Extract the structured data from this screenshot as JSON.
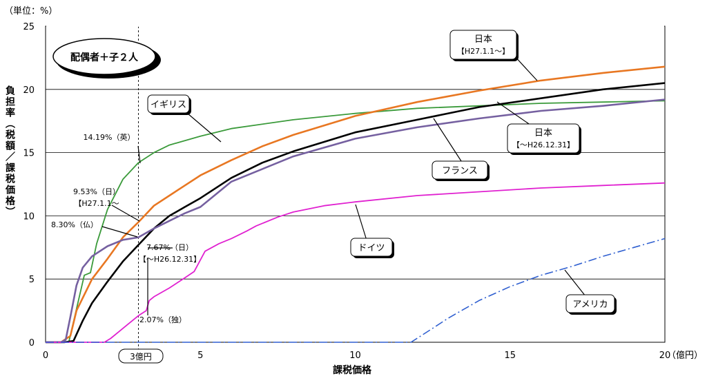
{
  "chart_data": {
    "type": "line",
    "unit_label": "（単位：%）",
    "ylabel": "負担率（税額／課税価格）",
    "xlabel": "課税価格",
    "x_unit": "（億円）",
    "xlim": [
      0,
      20
    ],
    "ylim": [
      0,
      25
    ],
    "x_ticks": [
      "0",
      "5",
      "10",
      "15",
      "20"
    ],
    "y_ticks": [
      "0",
      "5",
      "10",
      "15",
      "20",
      "25"
    ],
    "marker": {
      "x": 3,
      "label": "3億円"
    },
    "case_label": "配偶者＋子２人",
    "series": [
      {
        "name": "イギリス",
        "color": "#3a9a3a",
        "style": "solid",
        "x": [
          0,
          0.5,
          0.75,
          1.25,
          1.45,
          1.65,
          2,
          2.5,
          3,
          3.5,
          4,
          5,
          6,
          8,
          10,
          12,
          14,
          16,
          18,
          20
        ],
        "y": [
          0,
          0,
          0,
          5.3,
          5.5,
          7.8,
          10.5,
          12.9,
          14.2,
          15,
          15.6,
          16.3,
          16.9,
          17.6,
          18.1,
          18.5,
          18.7,
          18.9,
          19,
          19.1
        ]
      },
      {
        "name": "日本 H27.1.1〜",
        "color": "#e87722",
        "style": "solid",
        "x": [
          0,
          0.5,
          0.8,
          1,
          1.5,
          2,
          2.5,
          3,
          3.5,
          4,
          4.5,
          5,
          6,
          7,
          8,
          10,
          12,
          14,
          16,
          18,
          20
        ],
        "y": [
          0,
          0,
          0.5,
          2.5,
          5,
          6.6,
          8.3,
          9.5,
          10.8,
          11.6,
          12.4,
          13.2,
          14.4,
          15.5,
          16.4,
          17.9,
          19,
          19.9,
          20.7,
          21.3,
          21.8
        ]
      },
      {
        "name": "日本 〜H26.12.31",
        "color": "#000000",
        "style": "solid",
        "x": [
          0,
          0.6,
          0.9,
          1.2,
          1.5,
          2,
          2.5,
          3,
          3.5,
          4,
          4.5,
          5,
          6,
          7,
          8,
          10,
          12,
          14,
          16,
          18,
          20
        ],
        "y": [
          0,
          0,
          0.1,
          1.7,
          3.1,
          4.8,
          6.4,
          7.7,
          9,
          10,
          10.7,
          11.4,
          13,
          14.2,
          15.1,
          16.6,
          17.6,
          18.6,
          19.3,
          20,
          20.5
        ]
      },
      {
        "name": "フランス",
        "color": "#7560a0",
        "style": "solid",
        "x": [
          0,
          0.5,
          0.65,
          0.8,
          1,
          1.2,
          1.5,
          2,
          2.5,
          3,
          3.5,
          4,
          4.5,
          5,
          6,
          8,
          10,
          12,
          14,
          16,
          18,
          20
        ],
        "y": [
          0,
          0,
          0.2,
          2,
          4.5,
          5.9,
          6.8,
          7.6,
          8.1,
          8.3,
          9,
          9.6,
          10.2,
          10.7,
          12.7,
          14.7,
          16.1,
          17,
          17.7,
          18.3,
          18.7,
          19.2
        ]
      },
      {
        "name": "ドイツ",
        "color": "#e020d0",
        "style": "solid",
        "x": [
          0,
          1.9,
          2.1,
          2.35,
          2.6,
          3,
          3.25,
          3.35,
          3.5,
          4,
          4.5,
          4.8,
          5.15,
          5.6,
          6,
          6.5,
          6.8,
          7.5,
          8,
          9,
          10,
          12,
          14,
          16,
          18,
          20
        ],
        "y": [
          0,
          0,
          0.3,
          0.8,
          1.3,
          2.1,
          2.5,
          3.3,
          3.6,
          4.3,
          5.1,
          5.6,
          7.2,
          7.8,
          8.2,
          8.8,
          9.2,
          9.9,
          10.3,
          10.8,
          11.1,
          11.6,
          11.9,
          12.2,
          12.4,
          12.6
        ]
      },
      {
        "name": "アメリカ",
        "color": "#2f5fd0",
        "style": "dashdot",
        "x": [
          0,
          11.8,
          12.5,
          13,
          14,
          15,
          16,
          17,
          18,
          19,
          20
        ],
        "y": [
          0,
          0,
          1.1,
          1.9,
          3.3,
          4.4,
          5.3,
          6,
          6.8,
          7.5,
          8.2
        ]
      }
    ],
    "callouts": [
      {
        "name": "uk",
        "lines": [
          "イギリス"
        ]
      },
      {
        "name": "jp-new",
        "lines": [
          "日本",
          "【H27.1.1〜】"
        ]
      },
      {
        "name": "jp-old",
        "lines": [
          "日本",
          "【〜H26.12.31】"
        ]
      },
      {
        "name": "fr",
        "lines": [
          "フランス"
        ]
      },
      {
        "name": "de",
        "lines": [
          "ドイツ"
        ]
      },
      {
        "name": "us",
        "lines": [
          "アメリカ"
        ]
      }
    ],
    "annotations": [
      {
        "name": "uk-value",
        "lines": [
          "14.19%（英）"
        ]
      },
      {
        "name": "jp-new-value",
        "lines": [
          "9.53%（日）",
          "【H27.1.1〜"
        ]
      },
      {
        "name": "fr-value",
        "lines": [
          "8.30%（仏）"
        ]
      },
      {
        "name": "jp-old-value",
        "lines": [
          "7.67%（日）",
          "【〜H26.12.31】"
        ]
      },
      {
        "name": "de-value",
        "lines": [
          "2.07%（独）"
        ]
      }
    ]
  }
}
